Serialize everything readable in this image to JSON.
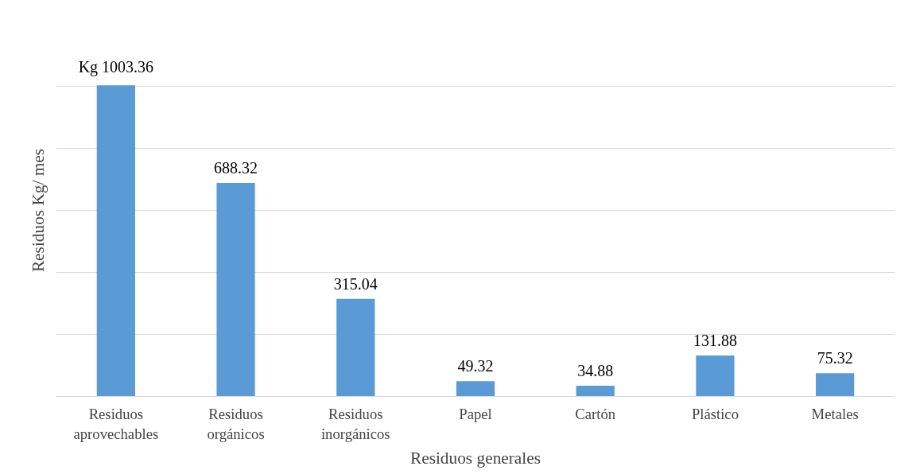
{
  "chart_data": {
    "type": "bar",
    "xlabel": "Residuos generales",
    "ylabel": "Residuos Kg/ mes",
    "categories": [
      "Residuos\naprovechables",
      "Residuos\norgánicos",
      "Residuos\ninorgánicos",
      "Papel",
      "Cartón",
      "Plástico",
      "Metales"
    ],
    "values": [
      1003.36,
      688.32,
      315.04,
      49.32,
      34.88,
      131.88,
      75.32
    ],
    "value_labels": [
      "Kg 1003.36",
      "688.32",
      "315.04",
      "49.32",
      "34.88",
      "131.88",
      "75.32"
    ],
    "color": "#5b9bd5",
    "grid": "y",
    "tick_labels": "x"
  }
}
